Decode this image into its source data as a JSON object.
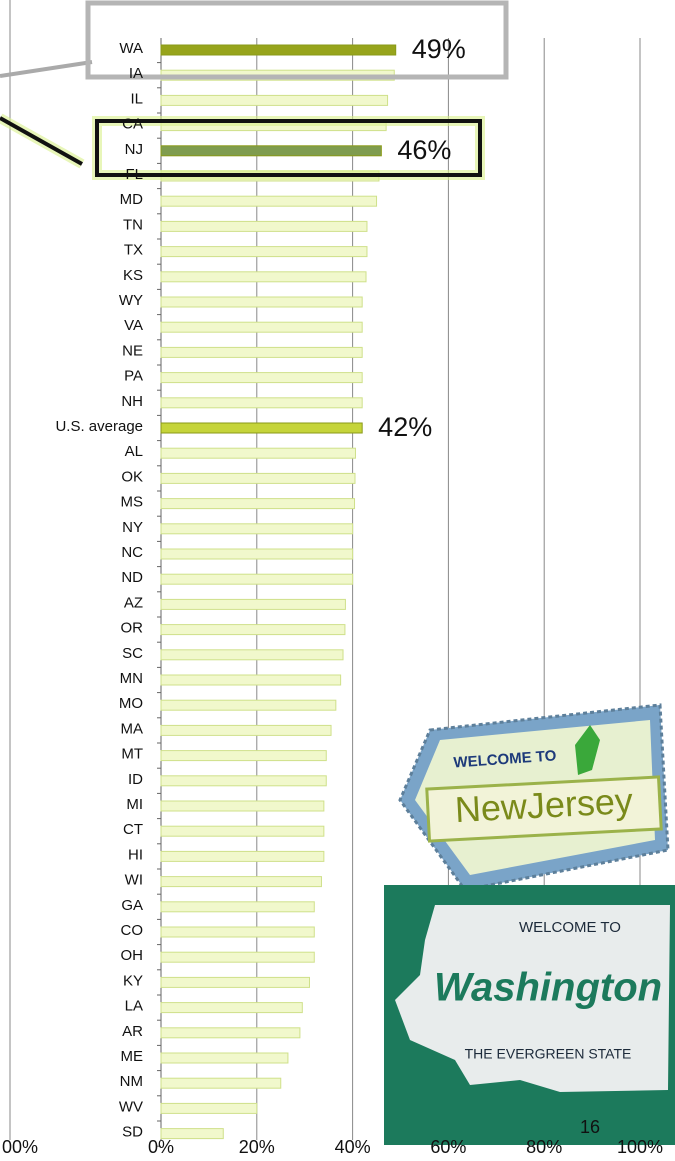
{
  "chart_data": {
    "type": "hbar",
    "categories": [
      "WA",
      "IA",
      "IL",
      "CA",
      "NJ",
      "FL",
      "MD",
      "TN",
      "TX",
      "KS",
      "WY",
      "VA",
      "NE",
      "PA",
      "NH",
      "U.S. average",
      "AL",
      "OK",
      "MS",
      "NY",
      "NC",
      "ND",
      "AZ",
      "OR",
      "SC",
      "MN",
      "MO",
      "MA",
      "MT",
      "ID",
      "MI",
      "CT",
      "HI",
      "WI",
      "GA",
      "CO",
      "OH",
      "KY",
      "LA",
      "AR",
      "ME",
      "NM",
      "WV",
      "SD"
    ],
    "values": [
      49,
      48.7,
      47.3,
      47,
      46,
      45.5,
      45,
      43,
      43,
      42.8,
      42,
      42,
      42,
      42,
      42,
      42,
      40.6,
      40.5,
      40.4,
      40,
      40,
      40,
      38.5,
      38.4,
      38,
      37.5,
      36.5,
      35.5,
      34.5,
      34.5,
      34,
      34,
      34,
      33.5,
      32,
      32,
      32,
      31,
      29.5,
      29,
      26.5,
      25,
      20,
      13
    ],
    "value_labels": [
      "49%",
      null,
      null,
      null,
      "46%",
      null,
      null,
      null,
      null,
      null,
      null,
      null,
      null,
      null,
      null,
      "42%",
      null,
      null,
      null,
      null,
      null,
      null,
      null,
      null,
      null,
      null,
      null,
      null,
      null,
      null,
      null,
      null,
      null,
      null,
      null,
      null,
      null,
      null,
      null,
      null,
      null,
      null,
      null,
      null
    ],
    "colors": [
      "#97a41c",
      "#f1f8cc",
      "#f1f8cc",
      "#f1f8cc",
      "#7f9c4f",
      "#f1f8cc",
      "#f1f8cc",
      "#f1f8cc",
      "#f1f8cc",
      "#f1f8cc",
      "#f1f8cc",
      "#f1f8cc",
      "#f1f8cc",
      "#f1f8cc",
      "#f1f8cc",
      "#c5d43a",
      "#f1f8cc",
      "#f1f8cc",
      "#f1f8cc",
      "#f1f8cc",
      "#f1f8cc",
      "#f1f8cc",
      "#f1f8cc",
      "#f1f8cc",
      "#f1f8cc",
      "#f1f8cc",
      "#f1f8cc",
      "#f1f8cc",
      "#f1f8cc",
      "#f1f8cc",
      "#f1f8cc",
      "#f1f8cc",
      "#f1f8cc",
      "#f1f8cc",
      "#f1f8cc",
      "#f1f8cc",
      "#f1f8cc",
      "#f1f8cc",
      "#f1f8cc",
      "#f1f8cc",
      "#f1f8cc",
      "#f1f8cc",
      "#f1f8cc",
      "#f1f8cc"
    ],
    "xlim": [
      0,
      100
    ],
    "xticks": [
      {
        "value": 0,
        "label": "0%"
      },
      {
        "value": 20,
        "label": "20%"
      },
      {
        "value": 40,
        "label": "40%"
      },
      {
        "value": 60,
        "label": "60%"
      },
      {
        "value": 80,
        "label": "80%"
      },
      {
        "value": 100,
        "label": "100%"
      }
    ],
    "grid": true
  },
  "fragments": {
    "left_axis_label": "00%",
    "page_number": "16"
  },
  "signs": {
    "new_jersey": {
      "welcome": "WELCOME TO",
      "name": "NewJersey"
    },
    "washington": {
      "welcome": "WELCOME TO",
      "name": "Washington",
      "motto": "THE EVERGREEN STATE"
    }
  }
}
